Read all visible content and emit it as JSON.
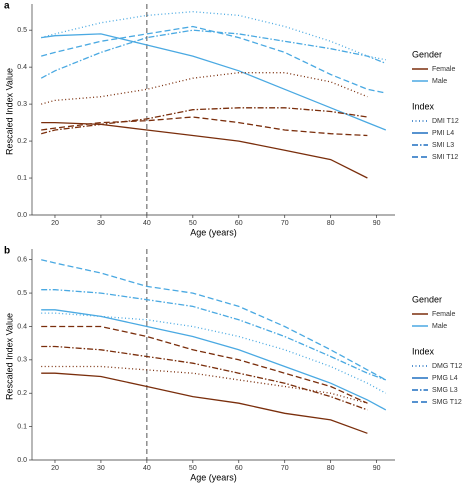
{
  "chart_data": [
    {
      "type": "line",
      "panel": "a",
      "ylabel": "Rescaled Index Value",
      "xlabel": "Age (years)",
      "x": [
        17,
        20,
        30,
        40,
        50,
        60,
        70,
        80,
        88,
        92
      ],
      "xlim": [
        15,
        94
      ],
      "xticks": [
        20,
        30,
        40,
        50,
        60,
        70,
        80,
        90
      ],
      "ylim": [
        0,
        0.56
      ],
      "yticks": [
        {
          "value": 0,
          "label": "0.0"
        },
        0.1,
        0.2,
        0.3,
        0.4,
        0.5
      ],
      "vline": 40,
      "legend_groups": [
        {
          "title": "Gender",
          "entries": [
            {
              "name": "Female",
              "color": "#7a2e0c"
            },
            {
              "name": "Male",
              "color": "#4aa9e2"
            }
          ]
        },
        {
          "title": "Index",
          "entries": [
            {
              "name": "DMI T12",
              "dash": "dotted"
            },
            {
              "name": "PMI L4",
              "dash": "solid"
            },
            {
              "name": "SMI L3",
              "dash": "dotdash"
            },
            {
              "name": "SMI T12",
              "dash": "dashed"
            }
          ]
        }
      ],
      "series": [
        {
          "gender": "Male",
          "index": "DMI T12",
          "values": [
            0.48,
            0.49,
            0.52,
            0.54,
            0.55,
            0.54,
            0.51,
            0.47,
            0.43,
            0.42
          ]
        },
        {
          "gender": "Male",
          "index": "PMI L4",
          "values": [
            0.48,
            0.485,
            0.49,
            0.46,
            0.43,
            0.39,
            0.34,
            0.29,
            0.25,
            0.23
          ]
        },
        {
          "gender": "Male",
          "index": "SMI L3",
          "values": [
            0.37,
            0.39,
            0.44,
            0.48,
            0.5,
            0.49,
            0.47,
            0.45,
            0.43,
            0.41
          ]
        },
        {
          "gender": "Male",
          "index": "SMI T12",
          "values": [
            0.43,
            0.44,
            0.47,
            0.49,
            0.51,
            0.48,
            0.44,
            0.38,
            0.34,
            0.33
          ]
        },
        {
          "gender": "Female",
          "index": "DMI T12",
          "values": [
            0.3,
            0.31,
            0.32,
            0.34,
            0.37,
            0.385,
            0.385,
            0.36,
            0.32,
            null
          ]
        },
        {
          "gender": "Female",
          "index": "PMI L4",
          "values": [
            0.25,
            0.25,
            0.245,
            0.23,
            0.215,
            0.2,
            0.175,
            0.15,
            0.1,
            null
          ]
        },
        {
          "gender": "Female",
          "index": "SMI L3",
          "values": [
            0.22,
            0.23,
            0.245,
            0.26,
            0.285,
            0.29,
            0.29,
            0.28,
            0.265,
            null
          ]
        },
        {
          "gender": "Female",
          "index": "SMI T12",
          "values": [
            0.23,
            0.235,
            0.25,
            0.255,
            0.265,
            0.25,
            0.23,
            0.22,
            0.215,
            null
          ]
        }
      ]
    },
    {
      "type": "line",
      "panel": "b",
      "ylabel": "Rescaled Index Value",
      "xlabel": "Age (years)",
      "x": [
        17,
        20,
        30,
        40,
        50,
        60,
        70,
        80,
        88,
        92
      ],
      "xlim": [
        15,
        94
      ],
      "xticks": [
        20,
        30,
        40,
        50,
        60,
        70,
        80,
        90
      ],
      "ylim": [
        0,
        0.62
      ],
      "yticks": [
        {
          "value": 0,
          "label": "0.0"
        },
        0.1,
        0.2,
        0.3,
        0.4,
        0.5,
        0.6
      ],
      "vline": 40,
      "legend_groups": [
        {
          "title": "Gender",
          "entries": [
            {
              "name": "Female",
              "color": "#7a2e0c"
            },
            {
              "name": "Male",
              "color": "#4aa9e2"
            }
          ]
        },
        {
          "title": "Index",
          "entries": [
            {
              "name": "DMG T12",
              "dash": "dotted"
            },
            {
              "name": "PMG L4",
              "dash": "solid"
            },
            {
              "name": "SMG L3",
              "dash": "dotdash"
            },
            {
              "name": "SMG T12",
              "dash": "dashed"
            }
          ]
        }
      ],
      "series": [
        {
          "gender": "Male",
          "index": "DMG T12",
          "values": [
            0.44,
            0.44,
            0.43,
            0.42,
            0.4,
            0.37,
            0.33,
            0.28,
            0.23,
            0.2
          ]
        },
        {
          "gender": "Male",
          "index": "PMG L4",
          "values": [
            0.45,
            0.45,
            0.43,
            0.4,
            0.37,
            0.33,
            0.28,
            0.23,
            0.18,
            0.15
          ]
        },
        {
          "gender": "Male",
          "index": "SMG L3",
          "values": [
            0.51,
            0.51,
            0.5,
            0.48,
            0.46,
            0.42,
            0.37,
            0.31,
            0.26,
            0.24
          ]
        },
        {
          "gender": "Male",
          "index": "SMG T12",
          "values": [
            0.6,
            0.59,
            0.56,
            0.52,
            0.5,
            0.46,
            0.4,
            0.33,
            0.27,
            0.24
          ]
        },
        {
          "gender": "Female",
          "index": "DMG T12",
          "values": [
            0.28,
            0.28,
            0.28,
            0.27,
            0.26,
            0.24,
            0.22,
            0.2,
            0.17,
            null
          ]
        },
        {
          "gender": "Female",
          "index": "PMG L4",
          "values": [
            0.26,
            0.26,
            0.25,
            0.22,
            0.19,
            0.17,
            0.14,
            0.12,
            0.08,
            null
          ]
        },
        {
          "gender": "Female",
          "index": "SMG L3",
          "values": [
            0.34,
            0.34,
            0.33,
            0.31,
            0.29,
            0.26,
            0.23,
            0.19,
            0.15,
            null
          ]
        },
        {
          "gender": "Female",
          "index": "SMG T12",
          "values": [
            0.4,
            0.4,
            0.4,
            0.37,
            0.33,
            0.3,
            0.26,
            0.22,
            0.17,
            null
          ]
        }
      ]
    }
  ]
}
